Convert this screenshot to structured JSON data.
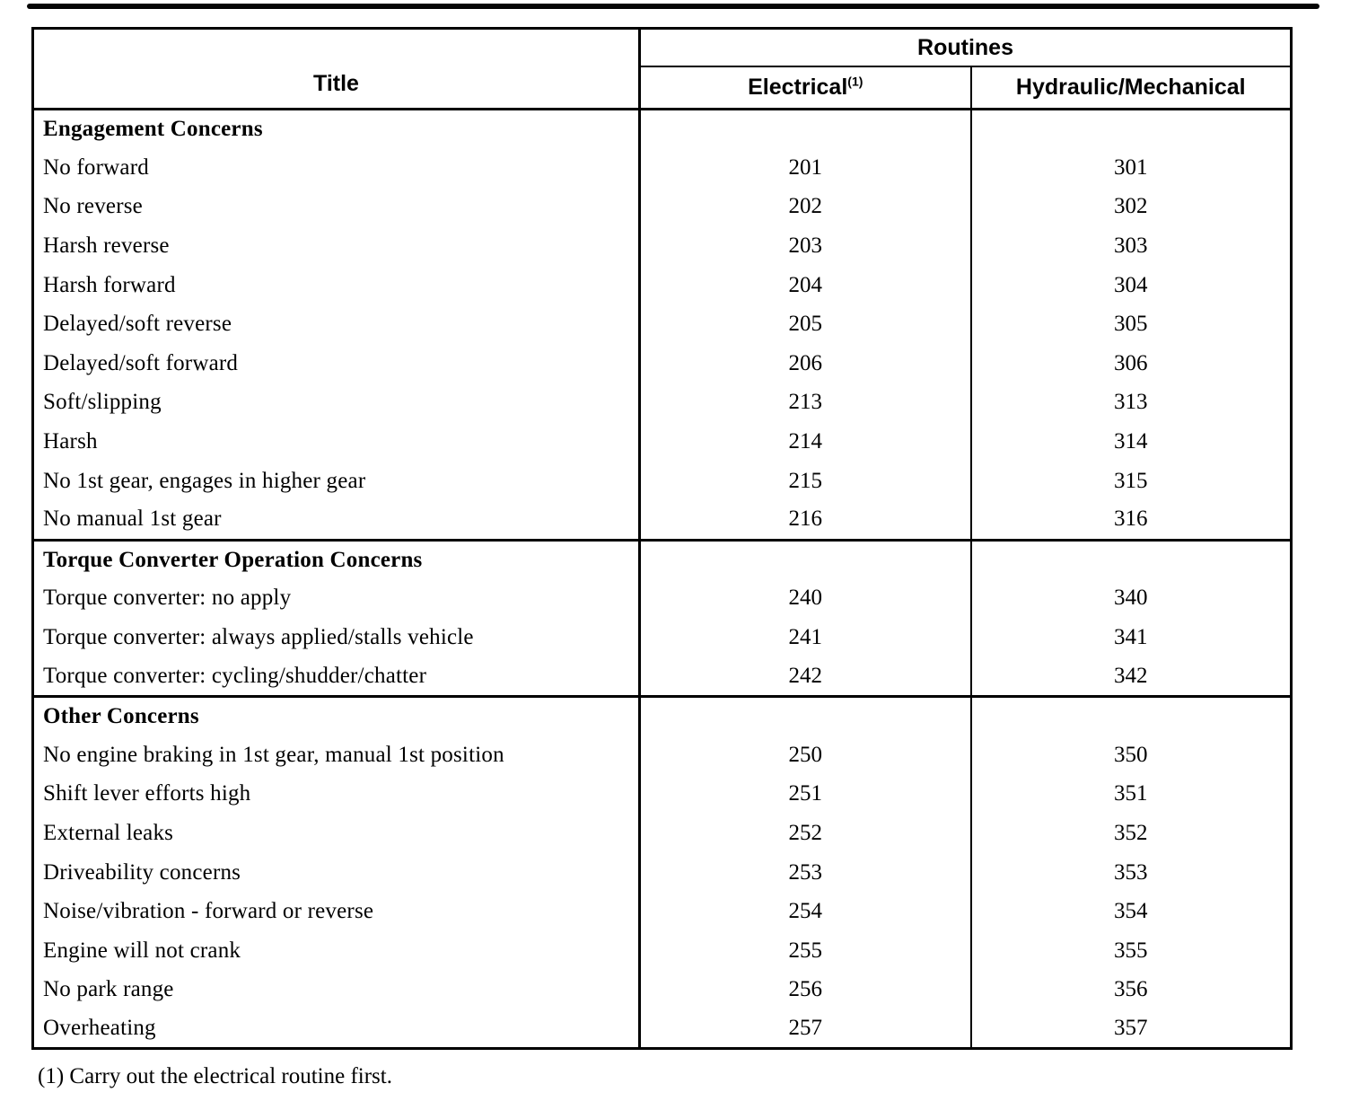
{
  "table": {
    "header": {
      "title_col": "Title",
      "routines_col": "Routines",
      "electrical_col": "Electrical",
      "electrical_footnote_marker": "(1)",
      "hydraulic_col": "Hydraulic/Mechanical"
    },
    "sections": [
      {
        "heading": "Engagement Concerns",
        "rows": [
          {
            "title": "No forward",
            "electrical": "201",
            "hydraulic": "301"
          },
          {
            "title": "No reverse",
            "electrical": "202",
            "hydraulic": "302"
          },
          {
            "title": "Harsh reverse",
            "electrical": "203",
            "hydraulic": "303"
          },
          {
            "title": "Harsh forward",
            "electrical": "204",
            "hydraulic": "304"
          },
          {
            "title": "Delayed/soft reverse",
            "electrical": "205",
            "hydraulic": "305"
          },
          {
            "title": "Delayed/soft forward",
            "electrical": "206",
            "hydraulic": "306"
          },
          {
            "title": "Soft/slipping",
            "electrical": "213",
            "hydraulic": "313"
          },
          {
            "title": "Harsh",
            "electrical": "214",
            "hydraulic": "314"
          },
          {
            "title": "No 1st gear, engages in higher gear",
            "electrical": "215",
            "hydraulic": "315"
          },
          {
            "title": "No manual 1st gear",
            "electrical": "216",
            "hydraulic": "316"
          }
        ]
      },
      {
        "heading": "Torque Converter Operation Concerns",
        "rows": [
          {
            "title": "Torque converter: no apply",
            "electrical": "240",
            "hydraulic": "340"
          },
          {
            "title": "Torque converter: always applied/stalls vehicle",
            "electrical": "241",
            "hydraulic": "341"
          },
          {
            "title": "Torque converter: cycling/shudder/chatter",
            "electrical": "242",
            "hydraulic": "342"
          }
        ]
      },
      {
        "heading": "Other Concerns",
        "rows": [
          {
            "title": "No engine braking in 1st gear, manual 1st position",
            "electrical": "250",
            "hydraulic": "350"
          },
          {
            "title": "Shift lever efforts high",
            "electrical": "251",
            "hydraulic": "351"
          },
          {
            "title": "External leaks",
            "electrical": "252",
            "hydraulic": "352"
          },
          {
            "title": "Driveability concerns",
            "electrical": "253",
            "hydraulic": "353"
          },
          {
            "title": "Noise/vibration - forward or reverse",
            "electrical": "254",
            "hydraulic": "354"
          },
          {
            "title": "Engine will not crank",
            "electrical": "255",
            "hydraulic": "355"
          },
          {
            "title": "No park range",
            "electrical": "256",
            "hydraulic": "356"
          },
          {
            "title": "Overheating",
            "electrical": "257",
            "hydraulic": "357"
          }
        ]
      }
    ],
    "footnote": "(1) Carry out the electrical routine first."
  }
}
